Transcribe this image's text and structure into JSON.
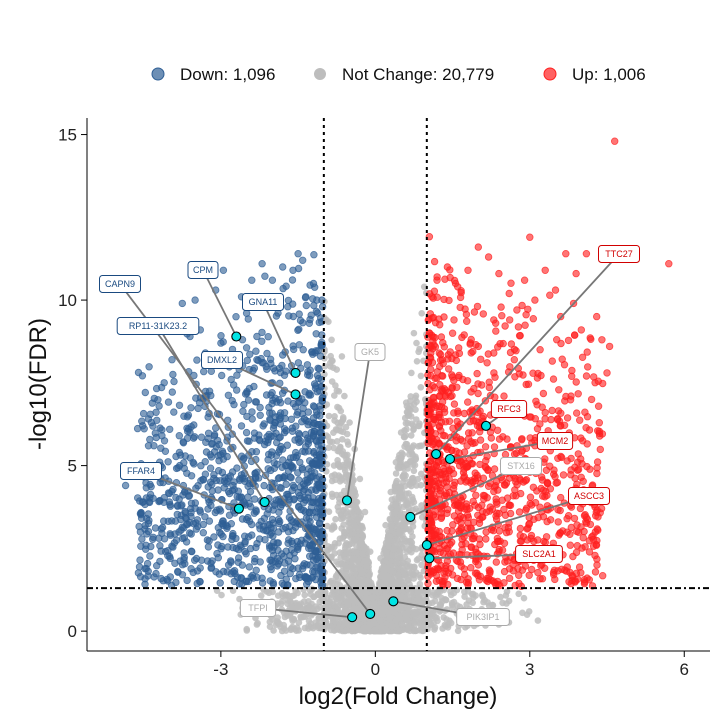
{
  "chart_data": {
    "type": "scatter",
    "subtype": "volcano",
    "xlabel": "log2(Fold Change)",
    "ylabel": "-log10(FDR)",
    "xlim": [
      -5.6,
      6.5
    ],
    "ylim": [
      -0.6,
      15.5
    ],
    "xticks": [
      -3,
      0,
      3,
      6
    ],
    "xtick_labels": [
      "-3",
      "0",
      "3",
      "6"
    ],
    "yticks": [
      0,
      5,
      10,
      15
    ],
    "ytick_labels": [
      "0",
      "5",
      "10",
      "15"
    ],
    "thresholds": {
      "x": [
        -1,
        1
      ],
      "y": 1.3
    },
    "grid": false,
    "legend": {
      "placement": "top",
      "items": [
        {
          "key": "down",
          "label": "Down: 1,096",
          "color": "#2f5f95"
        },
        {
          "key": "none",
          "label": "Not Change: 20,779",
          "color": "#bdbdbd"
        },
        {
          "key": "up",
          "label": "Up: 1,006",
          "color": "#ff2020"
        }
      ]
    },
    "colors": {
      "down": "#2f5f95",
      "none": "#bdbdbd",
      "up": "#ff2020",
      "highlight": "#00e5e5",
      "label_down": "#1a4a80",
      "label_up": "#d10000",
      "label_none": "#aaaaaa"
    },
    "counts": {
      "down": 1096,
      "none": 20779,
      "up": 1006
    },
    "labeled_genes": [
      {
        "gene": "TTC27",
        "x": 1.18,
        "y": 5.35,
        "group": "up"
      },
      {
        "gene": "RFC3",
        "x": 2.15,
        "y": 6.2,
        "group": "up"
      },
      {
        "gene": "MCM2",
        "x": 1.45,
        "y": 5.2,
        "group": "up"
      },
      {
        "gene": "ASCC3",
        "x": 1.0,
        "y": 2.6,
        "group": "up"
      },
      {
        "gene": "SLC2A1",
        "x": 1.05,
        "y": 2.2,
        "group": "up"
      },
      {
        "gene": "STX16",
        "x": 0.68,
        "y": 3.45,
        "group": "none"
      },
      {
        "gene": "GK5",
        "x": -0.55,
        "y": 3.95,
        "group": "none"
      },
      {
        "gene": "TFPI",
        "x": -0.45,
        "y": 0.42,
        "group": "none"
      },
      {
        "gene": "PIK3IP1",
        "x": 0.35,
        "y": 0.9,
        "group": "none"
      },
      {
        "gene": "CAPN9",
        "x": -0.1,
        "y": 0.52,
        "group": "down"
      },
      {
        "gene": "CPM",
        "x": -2.7,
        "y": 8.9,
        "group": "down"
      },
      {
        "gene": "GNA11",
        "x": -1.55,
        "y": 7.8,
        "group": "down"
      },
      {
        "gene": "DMXL2",
        "x": -1.55,
        "y": 7.15,
        "group": "down"
      },
      {
        "gene": "RP11-31K23.2",
        "x": -2.15,
        "y": 3.9,
        "group": "down"
      },
      {
        "gene": "FFAR4",
        "x": -2.65,
        "y": 3.7,
        "group": "down"
      }
    ],
    "background_points_note": "representative sample of gene points",
    "sample_points": {
      "down": [
        [
          -4.85,
          4.4
        ],
        [
          -4.5,
          5.0
        ],
        [
          -4.3,
          5.6
        ],
        [
          -4.2,
          6.8
        ],
        [
          -4.1,
          7.5
        ],
        [
          -3.95,
          8.2
        ],
        [
          -3.9,
          9.3
        ],
        [
          -3.75,
          9.9
        ],
        [
          -3.6,
          8.9
        ],
        [
          -3.5,
          10.0
        ],
        [
          -3.4,
          9.1
        ],
        [
          -3.3,
          8.4
        ],
        [
          -3.3,
          7.1
        ],
        [
          -3.1,
          10.3
        ],
        [
          -3.0,
          8.7
        ],
        [
          -2.95,
          10.9
        ],
        [
          -2.8,
          7.6
        ],
        [
          -2.6,
          10.1
        ],
        [
          -2.5,
          9.6
        ],
        [
          -2.4,
          10.6
        ],
        [
          -2.3,
          8.2
        ],
        [
          -2.2,
          11.1
        ],
        [
          -2.1,
          9.9
        ],
        [
          -2.0,
          10.6
        ],
        [
          -1.8,
          11.0
        ],
        [
          -1.7,
          9.8
        ],
        [
          -1.6,
          10.9
        ],
        [
          -1.5,
          11.4
        ],
        [
          -1.35,
          10.1
        ],
        [
          -1.2,
          10.5
        ],
        [
          -3.6,
          6.0
        ],
        [
          -3.8,
          5.0
        ],
        [
          -3.2,
          4.5
        ],
        [
          -2.9,
          3.2
        ],
        [
          -2.7,
          2.5
        ],
        [
          -2.4,
          2.9
        ],
        [
          -2.2,
          1.6
        ],
        [
          -1.9,
          2.2
        ],
        [
          -1.7,
          1.4
        ],
        [
          -1.5,
          1.9
        ],
        [
          -1.3,
          1.5
        ],
        [
          -1.15,
          2.4
        ],
        [
          -4.0,
          3.9
        ],
        [
          -3.4,
          3.6
        ],
        [
          -2.6,
          6.2
        ],
        [
          -2.0,
          7.5
        ],
        [
          -1.4,
          8.5
        ],
        [
          -1.2,
          6.8
        ],
        [
          -1.8,
          5.5
        ],
        [
          -2.3,
          4.8
        ],
        [
          -1.1,
          4.0
        ],
        [
          -1.25,
          3.1
        ],
        [
          -3.05,
          5.3
        ],
        [
          -4.35,
          6.3
        ],
        [
          -2.85,
          2.0
        ],
        [
          -3.7,
          4.2
        ],
        [
          -1.6,
          3.3
        ],
        [
          -1.95,
          6.3
        ],
        [
          -2.45,
          7.9
        ],
        [
          -1.05,
          7.6
        ]
      ],
      "up": [
        [
          1.1,
          10.1
        ],
        [
          1.2,
          10.7
        ],
        [
          1.4,
          11.0
        ],
        [
          1.6,
          10.4
        ],
        [
          1.8,
          10.9
        ],
        [
          2.0,
          11.6
        ],
        [
          2.2,
          11.3
        ],
        [
          2.4,
          10.8
        ],
        [
          2.6,
          10.2
        ],
        [
          2.9,
          10.6
        ],
        [
          3.0,
          11.9
        ],
        [
          3.1,
          10.0
        ],
        [
          3.3,
          10.9
        ],
        [
          3.5,
          10.3
        ],
        [
          3.6,
          9.5
        ],
        [
          3.7,
          11.4
        ],
        [
          3.9,
          10.8
        ],
        [
          4.0,
          9.1
        ],
        [
          4.1,
          11.4
        ],
        [
          4.3,
          9.5
        ],
        [
          4.4,
          8.8
        ],
        [
          4.55,
          8.6
        ],
        [
          4.5,
          7.8
        ],
        [
          4.65,
          14.8
        ],
        [
          5.7,
          11.1
        ],
        [
          3.8,
          7.1
        ],
        [
          3.6,
          6.2
        ],
        [
          3.3,
          6.6
        ],
        [
          3.1,
          5.6
        ],
        [
          3.0,
          4.8
        ],
        [
          2.8,
          3.6
        ],
        [
          2.6,
          3.0
        ],
        [
          2.4,
          2.4
        ],
        [
          2.2,
          1.6
        ],
        [
          2.0,
          2.0
        ],
        [
          1.8,
          1.4
        ],
        [
          1.5,
          1.7
        ],
        [
          1.3,
          1.5
        ],
        [
          1.15,
          2.9
        ],
        [
          1.1,
          4.5
        ],
        [
          1.2,
          6.8
        ],
        [
          1.3,
          8.2
        ],
        [
          1.5,
          9.0
        ],
        [
          1.7,
          7.6
        ],
        [
          2.0,
          8.6
        ],
        [
          2.3,
          9.4
        ],
        [
          2.5,
          7.1
        ],
        [
          2.7,
          8.2
        ],
        [
          2.9,
          6.5
        ],
        [
          3.2,
          8.5
        ],
        [
          3.4,
          4.3
        ],
        [
          1.9,
          5.3
        ],
        [
          2.5,
          5.0
        ],
        [
          1.6,
          3.8
        ],
        [
          2.1,
          4.1
        ],
        [
          1.05,
          3.5
        ],
        [
          1.35,
          5.9
        ],
        [
          2.75,
          9.7
        ],
        [
          3.85,
          9.9
        ],
        [
          4.2,
          7.0
        ]
      ],
      "none": [
        [
          -0.95,
          9.4
        ],
        [
          -0.85,
          8.8
        ],
        [
          -0.75,
          7.9
        ],
        [
          -0.6,
          7.1
        ],
        [
          -0.5,
          6.3
        ],
        [
          -0.4,
          5.5
        ],
        [
          -0.3,
          4.6
        ],
        [
          -0.2,
          3.6
        ],
        [
          -0.1,
          2.4
        ],
        [
          0.0,
          1.2
        ],
        [
          0.1,
          2.2
        ],
        [
          0.2,
          3.2
        ],
        [
          0.3,
          4.2
        ],
        [
          0.4,
          5.1
        ],
        [
          0.5,
          6.0
        ],
        [
          0.6,
          6.9
        ],
        [
          0.7,
          7.8
        ],
        [
          0.8,
          8.7
        ],
        [
          0.9,
          9.6
        ],
        [
          0.95,
          10.4
        ],
        [
          -0.98,
          8.0
        ],
        [
          -0.9,
          6.5
        ],
        [
          -0.8,
          5.0
        ],
        [
          -0.7,
          4.0
        ],
        [
          -0.6,
          3.0
        ],
        [
          -0.5,
          2.2
        ],
        [
          -0.4,
          1.5
        ],
        [
          -0.3,
          0.9
        ],
        [
          -0.2,
          0.5
        ],
        [
          -0.1,
          0.2
        ],
        [
          0.1,
          0.3
        ],
        [
          0.2,
          0.6
        ],
        [
          0.3,
          1.0
        ],
        [
          0.45,
          1.7
        ],
        [
          0.6,
          2.5
        ],
        [
          0.7,
          3.3
        ],
        [
          0.8,
          4.4
        ],
        [
          0.9,
          5.6
        ],
        [
          0.97,
          7.0
        ],
        [
          0.85,
          6.2
        ],
        [
          -1.3,
          0.9
        ],
        [
          -1.7,
          0.6
        ],
        [
          -2.0,
          0.35
        ],
        [
          -2.3,
          0.2
        ],
        [
          1.3,
          0.9
        ],
        [
          1.7,
          0.6
        ],
        [
          2.0,
          0.35
        ],
        [
          2.4,
          0.2
        ],
        [
          -0.9,
          0.8
        ],
        [
          -0.6,
          0.45
        ],
        [
          0.6,
          0.45
        ],
        [
          0.9,
          0.8
        ],
        [
          -1.1,
          0.4
        ],
        [
          1.1,
          0.4
        ],
        [
          0.0,
          0.05
        ],
        [
          -0.65,
          8.3
        ],
        [
          0.75,
          9.0
        ],
        [
          -0.25,
          2.9
        ],
        [
          0.25,
          2.7
        ],
        [
          -0.45,
          4.9
        ]
      ]
    }
  }
}
